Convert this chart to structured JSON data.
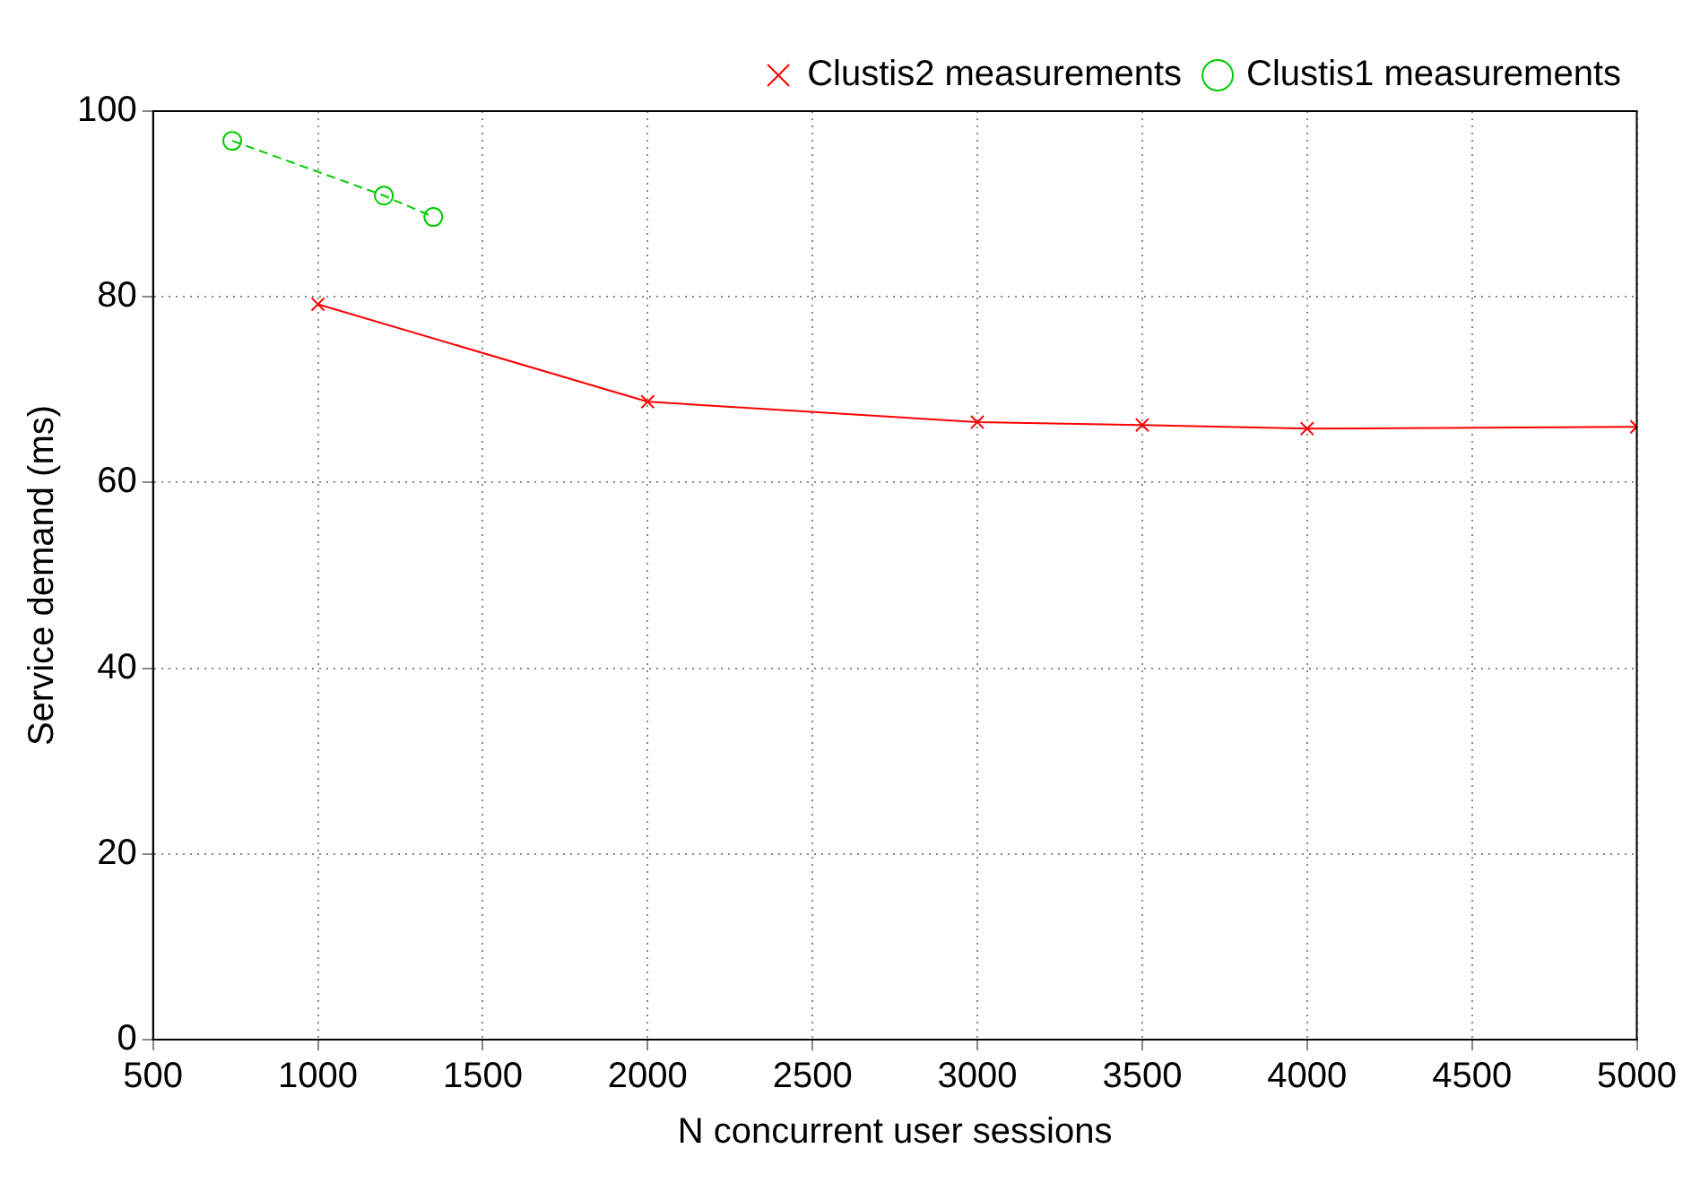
{
  "chart_data": {
    "type": "line",
    "xlabel": "N concurrent user sessions",
    "ylabel": "Service demand (ms)",
    "xlim": [
      500,
      5000
    ],
    "xticks": [
      500,
      1000,
      1500,
      2000,
      2500,
      3000,
      3500,
      4000,
      4500,
      5000
    ],
    "ylim": [
      0,
      100
    ],
    "yticks": [
      0,
      20,
      40,
      60,
      80,
      100
    ],
    "grid": true,
    "legend": "top right",
    "series": [
      {
        "name": "Clustis2 measurements",
        "color": "#ff0000",
        "marker": "cross",
        "line_style": "solid",
        "x": [
          1000,
          2000,
          3000,
          3500,
          4000,
          5000
        ],
        "values": [
          79.2,
          68.7,
          66.5,
          66.2,
          65.8,
          66.0
        ]
      },
      {
        "name": "Clustis1 measurements",
        "color": "#00cc00",
        "marker": "circle",
        "line_style": "dashed",
        "x": [
          740,
          1200,
          1350
        ],
        "values": [
          96.8,
          90.9,
          88.6
        ]
      }
    ]
  }
}
